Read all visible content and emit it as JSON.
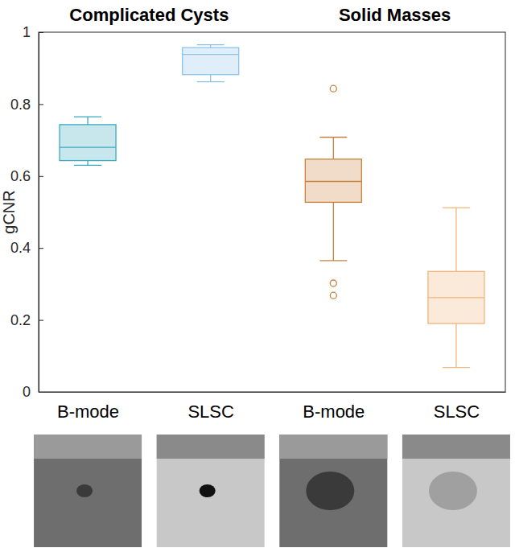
{
  "chart_data": {
    "type": "box",
    "ylabel": "gCNR",
    "ylim": [
      0,
      1
    ],
    "yticks": [
      0,
      0.2,
      0.4,
      0.6,
      0.8,
      1
    ],
    "grid": false,
    "groups": [
      {
        "label": "Complicated Cysts",
        "boxes": [
          {
            "category": "B-mode",
            "color": "#3aaabf",
            "min": 0.63,
            "q1": 0.643,
            "median": 0.68,
            "q3": 0.743,
            "max": 0.765,
            "outliers": []
          },
          {
            "category": "SLSC",
            "color": "#8cc4e8",
            "min": 0.862,
            "q1": 0.882,
            "median": 0.938,
            "q3": 0.957,
            "max": 0.965,
            "outliers": []
          }
        ]
      },
      {
        "label": "Solid Masses",
        "boxes": [
          {
            "category": "B-mode",
            "color": "#c8823c",
            "min": 0.365,
            "q1": 0.527,
            "median": 0.585,
            "q3": 0.647,
            "max": 0.708,
            "outliers": [
              0.843,
              0.302,
              0.268
            ]
          },
          {
            "category": "SLSC",
            "color": "#f0b47a",
            "min": 0.068,
            "q1": 0.19,
            "median": 0.262,
            "q3": 0.335,
            "max": 0.512,
            "outliers": []
          }
        ]
      }
    ]
  }
}
